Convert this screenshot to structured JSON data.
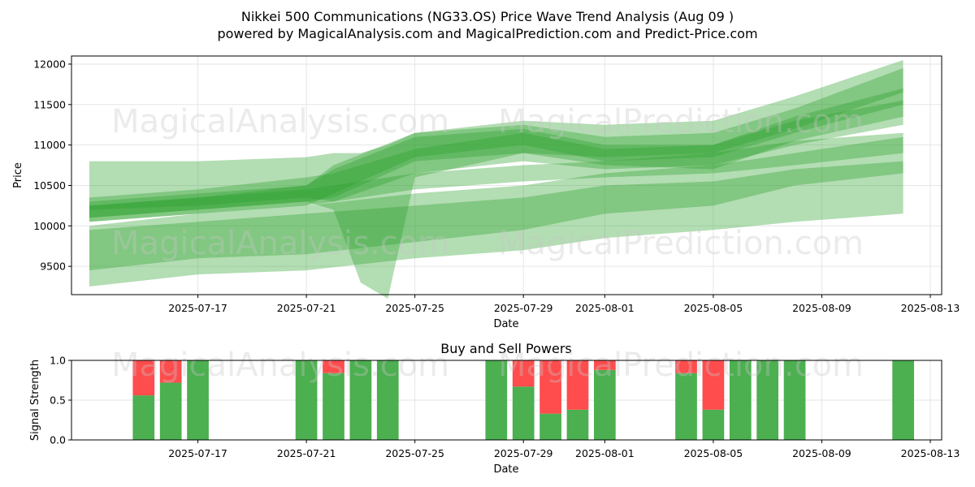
{
  "title": {
    "line1": "Nikkei 500 Communications (NG33.OS) Price Wave Trend Analysis (Aug 09 )",
    "line2": "powered by MagicalAnalysis.com and MagicalPrediction.com and Predict-Price.com"
  },
  "watermarks": [
    "MagicalAnalysis.com",
    "MagicalPrediction.com"
  ],
  "colors": {
    "band": "#2ca02c",
    "buy": "#4caf50",
    "sell": "#ff4c4c",
    "grid": "#e6e6e6"
  },
  "chart_data": [
    {
      "type": "area",
      "title": "",
      "xlabel": "Date",
      "ylabel": "Price",
      "xlim": [
        "2025-07-13",
        "2025-08-13"
      ],
      "ylim": [
        9150,
        12100
      ],
      "grid": true,
      "yticks": [
        9500,
        10000,
        10500,
        11000,
        11500,
        12000
      ],
      "xticks": [
        "2025-07-17",
        "2025-07-21",
        "2025-07-25",
        "2025-07-29",
        "2025-08-01",
        "2025-08-05",
        "2025-08-09",
        "2025-08-13"
      ],
      "bands": [
        {
          "x": [
            "2025-07-13",
            "2025-07-17",
            "2025-07-21",
            "2025-07-22",
            "2025-07-25",
            "2025-07-29",
            "2025-08-01",
            "2025-08-05",
            "2025-08-08",
            "2025-08-12"
          ],
          "lower": [
            10200,
            10250,
            10350,
            10300,
            10650,
            10800,
            10700,
            10750,
            11000,
            11250
          ],
          "upper": [
            10350,
            10450,
            10600,
            10650,
            10950,
            11150,
            10950,
            11000,
            11300,
            11550
          ]
        },
        {
          "x": [
            "2025-07-13",
            "2025-07-17",
            "2025-07-21",
            "2025-07-22",
            "2025-07-25",
            "2025-07-29",
            "2025-08-01",
            "2025-08-05",
            "2025-08-08",
            "2025-08-12"
          ],
          "lower": [
            10100,
            10200,
            10300,
            10350,
            10800,
            10900,
            10750,
            10700,
            11050,
            11350
          ],
          "upper": [
            10300,
            10400,
            10500,
            10700,
            11100,
            11200,
            11000,
            11000,
            11350,
            11700
          ]
        },
        {
          "x": [
            "2025-07-13",
            "2025-07-17",
            "2025-07-21",
            "2025-07-22",
            "2025-07-25",
            "2025-07-29",
            "2025-08-01",
            "2025-08-05",
            "2025-08-08",
            "2025-08-12"
          ],
          "lower": [
            10050,
            10150,
            10250,
            10400,
            10850,
            11000,
            10800,
            10850,
            11150,
            11500
          ],
          "upper": [
            10250,
            10350,
            10500,
            10750,
            11150,
            11250,
            11100,
            11150,
            11450,
            11950
          ]
        },
        {
          "x": [
            "2025-07-13",
            "2025-07-17",
            "2025-07-21",
            "2025-07-22",
            "2025-07-23",
            "2025-07-24",
            "2025-07-25",
            "2025-07-29",
            "2025-08-01",
            "2025-08-05",
            "2025-08-08",
            "2025-08-12"
          ],
          "lower": [
            10100,
            10200,
            10300,
            10200,
            9300,
            9100,
            10600,
            10900,
            10850,
            10900,
            11200,
            11650
          ],
          "upper": [
            10800,
            10800,
            10850,
            10900,
            10900,
            11000,
            11150,
            11300,
            11250,
            11300,
            11600,
            12050
          ]
        },
        {
          "x": [
            "2025-07-13",
            "2025-07-17",
            "2025-07-21",
            "2025-07-25",
            "2025-07-29",
            "2025-08-01",
            "2025-08-05",
            "2025-08-08",
            "2025-08-12"
          ],
          "lower": [
            10050,
            10150,
            10250,
            10450,
            10550,
            10600,
            10650,
            10750,
            10900
          ],
          "upper": [
            10250,
            10350,
            10450,
            10650,
            10750,
            10800,
            10900,
            11050,
            11150
          ]
        },
        {
          "x": [
            "2025-07-13",
            "2025-07-17",
            "2025-07-21",
            "2025-07-25",
            "2025-07-29",
            "2025-08-01",
            "2025-08-05",
            "2025-08-08",
            "2025-08-12"
          ],
          "lower": [
            9450,
            9600,
            9650,
            9800,
            9950,
            10150,
            10250,
            10500,
            10650
          ],
          "upper": [
            10000,
            10150,
            10250,
            10400,
            10500,
            10650,
            10750,
            10900,
            11100
          ]
        },
        {
          "x": [
            "2025-07-13",
            "2025-07-17",
            "2025-07-21",
            "2025-07-25",
            "2025-07-29",
            "2025-08-01",
            "2025-08-05",
            "2025-08-08",
            "2025-08-12"
          ],
          "lower": [
            9250,
            9400,
            9450,
            9600,
            9700,
            9850,
            9950,
            10050,
            10150
          ],
          "upper": [
            9950,
            10050,
            10150,
            10250,
            10350,
            10500,
            10550,
            10700,
            10800
          ]
        }
      ]
    },
    {
      "type": "bar",
      "title": "Buy and Sell Powers",
      "xlabel": "Date",
      "ylabel": "Signal Strength",
      "xlim": [
        "2025-07-13",
        "2025-08-13"
      ],
      "ylim": [
        0,
        1
      ],
      "yticks": [
        "0.0",
        "0.5",
        "1.0"
      ],
      "xticks": [
        "2025-07-17",
        "2025-07-21",
        "2025-07-25",
        "2025-07-29",
        "2025-08-01",
        "2025-08-05",
        "2025-08-09",
        "2025-08-13"
      ],
      "dates": [
        "2025-07-15",
        "2025-07-16",
        "2025-07-17",
        "2025-07-21",
        "2025-07-22",
        "2025-07-23",
        "2025-07-24",
        "2025-07-28",
        "2025-07-29",
        "2025-07-30",
        "2025-07-31",
        "2025-08-01",
        "2025-08-04",
        "2025-08-05",
        "2025-08-06",
        "2025-08-07",
        "2025-08-08",
        "2025-08-12"
      ],
      "series": [
        {
          "values": [
            0.56,
            0.72,
            1.0,
            1.0,
            0.84,
            1.0,
            1.0,
            1.0,
            0.67,
            0.33,
            0.38,
            0.88,
            0.84,
            0.38,
            1.0,
            1.0,
            1.0,
            1.0
          ]
        },
        {
          "values": [
            0.44,
            0.28,
            0.0,
            0.0,
            0.16,
            0.0,
            0.0,
            0.0,
            0.33,
            0.67,
            0.62,
            0.12,
            0.16,
            0.62,
            0.0,
            0.0,
            0.0,
            0.0
          ]
        }
      ]
    }
  ]
}
